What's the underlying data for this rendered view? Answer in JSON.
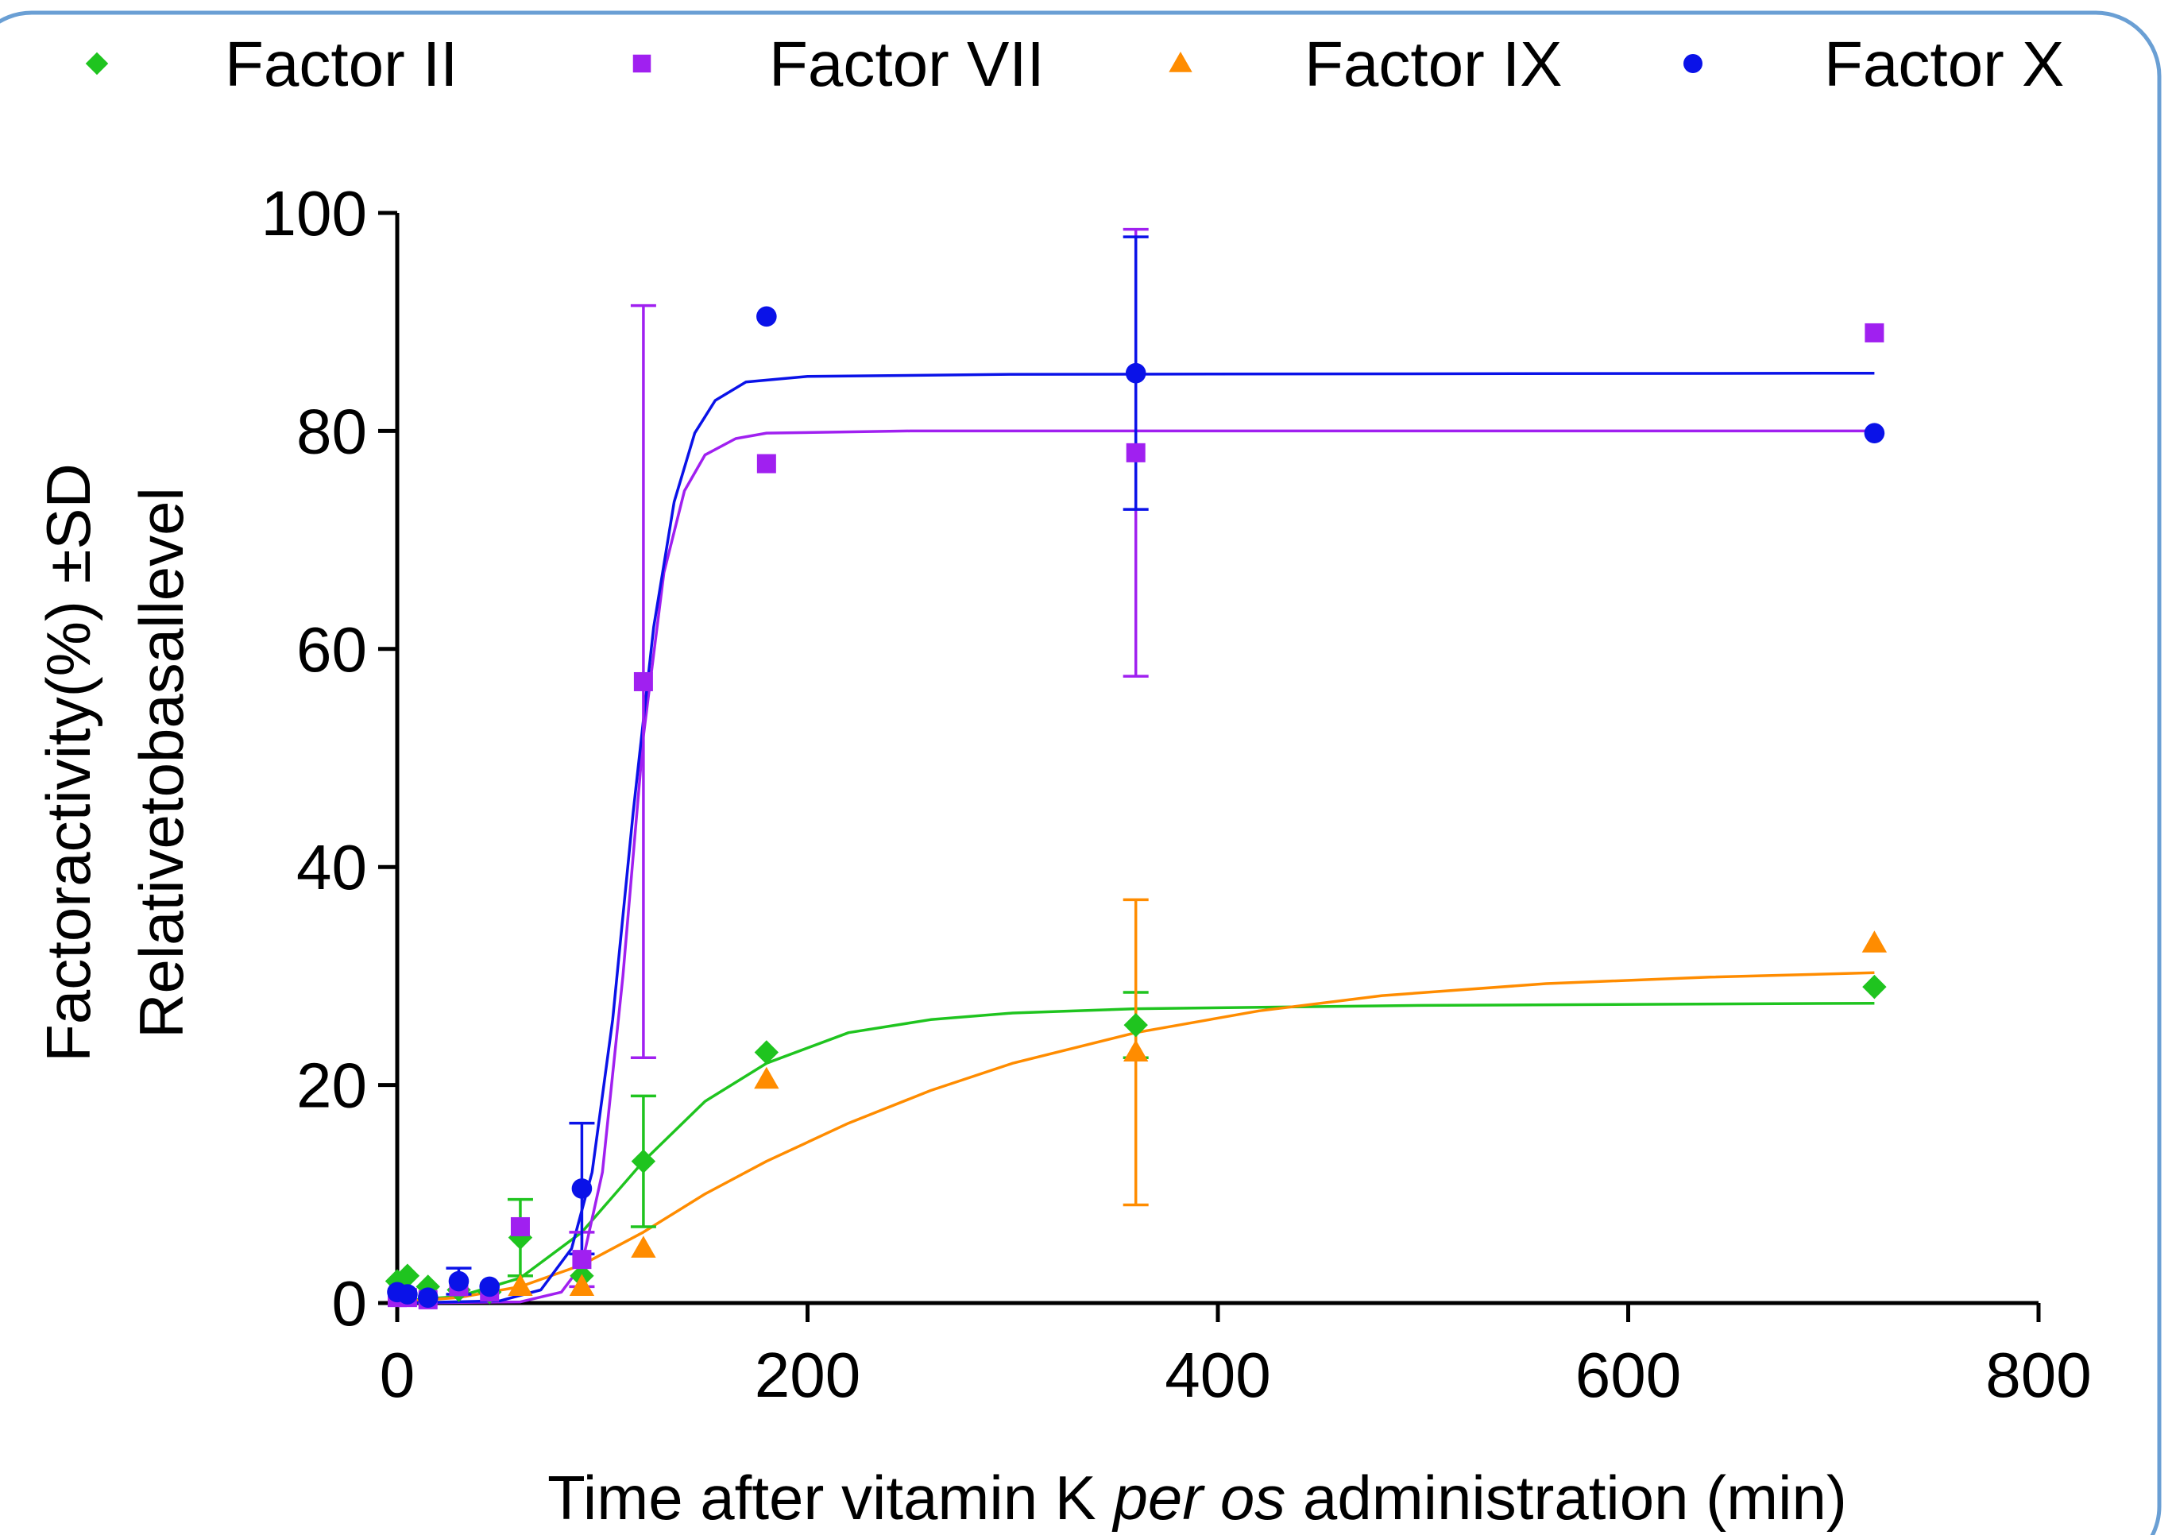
{
  "chart_data": {
    "type": "scatter",
    "title": "",
    "xlabel_parts": [
      "Time after vitamin K ",
      "per os",
      " administration (min)"
    ],
    "ylabel_lines": [
      "Factoractivity(%) ±SD",
      "Relativetobasallevel"
    ],
    "xlim": [
      0,
      800
    ],
    "ylim": [
      0,
      100
    ],
    "xticks": [
      0,
      200,
      400,
      600,
      800
    ],
    "yticks": [
      0,
      20,
      40,
      60,
      80,
      100
    ],
    "grid": false,
    "legend_position": "top",
    "series": [
      {
        "name": "Factor II",
        "color": "#1fc41f",
        "marker": "diamond",
        "x": [
          0,
          5,
          15,
          30,
          45,
          60,
          90,
          120,
          180,
          360,
          720
        ],
        "y": [
          2,
          2.5,
          1.5,
          1.2,
          1,
          6,
          2.5,
          13,
          23,
          25.5,
          29
        ],
        "err": [
          0,
          0,
          0,
          0,
          0,
          3.5,
          0,
          6,
          0,
          3,
          0
        ],
        "fit": [
          [
            0,
            0.2
          ],
          [
            30,
            0.6
          ],
          [
            60,
            2.3
          ],
          [
            90,
            6.5
          ],
          [
            120,
            13
          ],
          [
            150,
            18.5
          ],
          [
            180,
            22
          ],
          [
            220,
            24.8
          ],
          [
            260,
            26
          ],
          [
            300,
            26.6
          ],
          [
            360,
            27
          ],
          [
            500,
            27.3
          ],
          [
            720,
            27.5
          ]
        ]
      },
      {
        "name": "Factor VII",
        "color": "#a020f0",
        "marker": "square",
        "x": [
          0,
          5,
          15,
          30,
          45,
          60,
          90,
          120,
          180,
          360,
          720
        ],
        "y": [
          0.5,
          0.5,
          0.3,
          1.5,
          1,
          7,
          4,
          57,
          77,
          78,
          89
        ],
        "err": [
          0,
          0,
          0,
          0,
          0,
          0,
          2.5,
          34.5,
          0,
          20.5,
          0
        ],
        "fit": [
          [
            0,
            0
          ],
          [
            60,
            0.1
          ],
          [
            80,
            1
          ],
          [
            90,
            3.5
          ],
          [
            100,
            12
          ],
          [
            110,
            30
          ],
          [
            120,
            52
          ],
          [
            130,
            67
          ],
          [
            140,
            74.5
          ],
          [
            150,
            77.8
          ],
          [
            165,
            79.3
          ],
          [
            180,
            79.8
          ],
          [
            250,
            80
          ],
          [
            720,
            80
          ]
        ]
      },
      {
        "name": "Factor IX",
        "color": "#ff8c00",
        "marker": "triangle",
        "x": [
          60,
          90,
          120,
          180,
          360,
          720
        ],
        "y": [
          1.5,
          1.5,
          5,
          20.5,
          23,
          33
        ],
        "err": [
          0,
          0,
          0,
          0,
          14,
          0
        ],
        "fit": [
          [
            0,
            0.1
          ],
          [
            30,
            0.5
          ],
          [
            60,
            1.5
          ],
          [
            90,
            3.5
          ],
          [
            120,
            6.5
          ],
          [
            150,
            10
          ],
          [
            180,
            13
          ],
          [
            220,
            16.5
          ],
          [
            260,
            19.5
          ],
          [
            300,
            22
          ],
          [
            360,
            24.8
          ],
          [
            420,
            26.8
          ],
          [
            480,
            28.2
          ],
          [
            560,
            29.3
          ],
          [
            640,
            29.9
          ],
          [
            720,
            30.3
          ]
        ]
      },
      {
        "name": "Factor X",
        "color": "#0a12e8",
        "marker": "circle",
        "x": [
          0,
          5,
          15,
          30,
          45,
          90,
          180,
          360,
          720
        ],
        "y": [
          1,
          0.8,
          0.5,
          2,
          1.5,
          10.5,
          90.5,
          85.3,
          79.8
        ],
        "err": [
          0,
          0,
          0,
          1.2,
          0,
          6,
          0,
          12.5,
          0
        ],
        "fit": [
          [
            0,
            0
          ],
          [
            50,
            0.2
          ],
          [
            70,
            1.2
          ],
          [
            85,
            5
          ],
          [
            95,
            12
          ],
          [
            105,
            26
          ],
          [
            115,
            45
          ],
          [
            125,
            62
          ],
          [
            135,
            73.5
          ],
          [
            145,
            79.8
          ],
          [
            155,
            82.8
          ],
          [
            170,
            84.5
          ],
          [
            200,
            85
          ],
          [
            300,
            85.2
          ],
          [
            720,
            85.3
          ]
        ]
      }
    ]
  }
}
